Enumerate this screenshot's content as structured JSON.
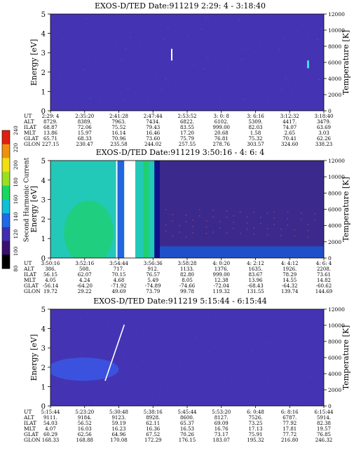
{
  "colorbar": {
    "label": "Second Harmonic Current",
    "ticks": [
      "80",
      "100",
      "120",
      "140",
      "160",
      "180",
      "200",
      "220",
      "240"
    ]
  },
  "chart_data": [
    {
      "type": "heatmap",
      "title": "EXOS-D/TED   Date:911219  2:29: 4 - 3:18:40",
      "ylabel": "Energy [eV]",
      "y2label": "Temperature [K]",
      "ylim": [
        0,
        5
      ],
      "y2lim": [
        0,
        12000
      ],
      "yticks": [
        "0",
        "1",
        "2",
        "3",
        "4",
        "5"
      ],
      "y2ticks": [
        "0",
        "2000",
        "4000",
        "6000",
        "8000",
        "10000",
        "12000"
      ],
      "background": "#4434b4",
      "orbit_table": {
        "rows": [
          "UT",
          "ALT",
          "ILAT",
          "MLT",
          "GLAT",
          "GLON"
        ],
        "columns": [
          [
            "2:29: 4",
            "8729.",
            "68.87",
            "13.86",
            "65.71",
            "227.15"
          ],
          [
            "2:35:20",
            "8389.",
            "72.06",
            "15.97",
            "68.33",
            "230.47"
          ],
          [
            "2:41:28",
            "7963.",
            "75.52",
            "16.14",
            "70.96",
            "235.58"
          ],
          [
            "2:47:44",
            "7434.",
            "79.43",
            "16.46",
            "73.60",
            "244.02"
          ],
          [
            "2:53:52",
            "6822.",
            "83.55",
            "17.20",
            "75.79",
            "257.55"
          ],
          [
            "3: 0: 8",
            "6102.",
            "999.00",
            "20.68",
            "76.81",
            "278.76"
          ],
          [
            "3: 6:16",
            "5309.",
            "82.03",
            "1.58",
            "75.32",
            "303.57"
          ],
          [
            "3:12:32",
            "4417.",
            "74.07",
            "2.65",
            "70.41",
            "324.60"
          ],
          [
            "3:18:40",
            "3479.",
            "63.69",
            "3.03",
            "62.26",
            "338.23"
          ]
        ]
      }
    },
    {
      "type": "heatmap",
      "title": "EXOS-D/TED   Date:911219  3:50:16 - 4: 6: 4",
      "ylabel": "Energy [eV]",
      "y2label": "Temperature [K]",
      "ylim": [
        0,
        5
      ],
      "y2lim": [
        0,
        12000
      ],
      "yticks": [
        "0",
        "1",
        "2",
        "3",
        "4",
        "5"
      ],
      "y2ticks": [
        "0",
        "2000",
        "4000",
        "6000",
        "8000",
        "10000",
        "12000"
      ],
      "background": "#1fd0c8",
      "orbit_table": {
        "rows": [
          "UT",
          "ALT",
          "ILAT",
          "MLT",
          "GLAT",
          "GLON"
        ],
        "columns": [
          [
            "3:50:16",
            "386.",
            "56.15",
            "4.05",
            "-56.14",
            "19.72"
          ],
          [
            "3:52:16",
            "508.",
            "62.07",
            "4.24",
            "-64.20",
            "29.22"
          ],
          [
            "3:54:44",
            "717.",
            "70.15",
            "4.68",
            "-71.92",
            "49.69"
          ],
          [
            "3:56:36",
            "912.",
            "76.57",
            "5.49",
            "-74.89",
            "73.79"
          ],
          [
            "3:58:28",
            "1133.",
            "82.80",
            "8.05",
            "-74.66",
            "99.78"
          ],
          [
            "4: 0:20",
            "1376.",
            "999.00",
            "12.38",
            "-72.04",
            "119.32"
          ],
          [
            "4: 2:12",
            "1635.",
            "83.67",
            "13.96",
            "-68.43",
            "131.55"
          ],
          [
            "4: 4:12",
            "1926.",
            "78.29",
            "14.55",
            "-64.32",
            "139.74"
          ],
          [
            "4: 6: 4",
            "2208.",
            "73.61",
            "14.82",
            "-60.62",
            "144.69"
          ]
        ]
      }
    },
    {
      "type": "heatmap",
      "title": "EXOS-D/TED   Date:911219  5:15:44 - 6:15:44",
      "ylabel": "Energy [eV]",
      "y2label": "Temperature [K]",
      "ylim": [
        0,
        5
      ],
      "y2lim": [
        0,
        12000
      ],
      "yticks": [
        "0",
        "1",
        "2",
        "3",
        "4",
        "5"
      ],
      "y2ticks": [
        "0",
        "2000",
        "4000",
        "6000",
        "8000",
        "10000",
        "12000"
      ],
      "background": "#4434b4",
      "orbit_table": {
        "rows": [
          "UT",
          "ALT",
          "ILAT",
          "MLT",
          "GLAT",
          "GLON"
        ],
        "columns": [
          [
            "5:15:44",
            "9111.",
            "54.03",
            "4.07",
            "60.29",
            "168.33"
          ],
          [
            "5:23:20",
            "9184.",
            "56.52",
            "16.03",
            "62.56",
            "168.88"
          ],
          [
            "5:30:48",
            "9123.",
            "59.19",
            "16.23",
            "64.96",
            "170.08"
          ],
          [
            "5:38:16",
            "8928.",
            "62.11",
            "16.36",
            "67.52",
            "172.29"
          ],
          [
            "5:45:44",
            "8600.",
            "65.37",
            "16.53",
            "70.26",
            "176.15"
          ],
          [
            "5:53:20",
            "8127.",
            "69.09",
            "16.76",
            "73.17",
            "183.07"
          ],
          [
            "6: 0:48",
            "7526.",
            "73.25",
            "17.13",
            "75.91",
            "195.32"
          ],
          [
            "6: 8:16",
            "6787.",
            "77.92",
            "17.81",
            "77.72",
            "216.80"
          ],
          [
            "6:15:44",
            "5914.",
            "82.38",
            "19.57",
            "76.85",
            "246.32"
          ]
        ]
      }
    }
  ]
}
